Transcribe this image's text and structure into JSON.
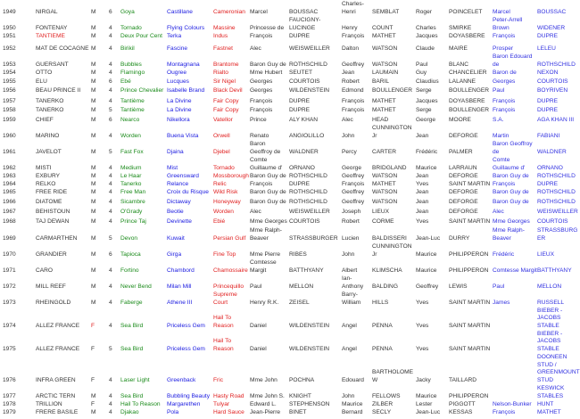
{
  "colors": {
    "sire": "#1a8a1a",
    "dam": "#1a1ae0",
    "damsire": "#e02020",
    "breeder": "#3030e0",
    "highlight": "#e02020"
  },
  "rows": [
    {
      "year": "1949",
      "horse": "NIRGAL",
      "sex": "M",
      "age": "6",
      "sire": "Goya",
      "dam": "Castillane",
      "damsire": "Cameronian",
      "owner_first": "Marcel",
      "owner_last": "BOUSSAC",
      "trainer_first": "Charles-Henri",
      "trainer_last": "SEMBLAT",
      "jockey_first": "Roger",
      "jockey_last": "POINCELET",
      "breeder_first": "Marcel",
      "breeder_last": "BOUSSAC"
    },
    {
      "year": "1950",
      "horse": "FONTENAY",
      "sex": "M",
      "age": "4",
      "sire": "Tornado",
      "dam": "Flying Colours",
      "damsire": "Massine",
      "owner_first": "Princesse de",
      "owner_last": "FAUCIGNY-LUCINGE",
      "trainer_first": "Henry",
      "trainer_last": "COUNT",
      "jockey_first": "Charles",
      "jockey_last": "SMIRKE",
      "breeder_first": "Peter-Arrell Brown",
      "breeder_last": "WIDENER"
    },
    {
      "year": "1951",
      "horse": "TANTIEME",
      "horse_red": true,
      "sex": "M",
      "age": "4",
      "sire": "Deux Pour Cent",
      "dam": "Terka",
      "damsire": "Indus",
      "owner_first": "François",
      "owner_last": "DUPRE",
      "trainer_first": "François",
      "trainer_last": "MATHET",
      "jockey_first": "Jacques",
      "jockey_last": "DOYASBERE",
      "breeder_first": "François",
      "breeder_last": "DUPRE"
    },
    {
      "year": "1952",
      "horse": "MAT DE COCAGNE",
      "sex": "M",
      "age": "4",
      "sire": "Birikil",
      "dam": "Fascine",
      "damsire": "Fastnet",
      "owner_first": "Alec",
      "owner_last": "WEISWEILLER",
      "trainer_first": "Dalton",
      "trainer_last": "WATSON",
      "jockey_first": "Claude",
      "jockey_last": "MAIRE",
      "breeder_first": "Prosper",
      "breeder_last": "LELEU"
    },
    {
      "year": "1953",
      "horse": "GUERSANT",
      "sex": "M",
      "age": "4",
      "sire": "Bubbles",
      "dam": "Montagnana",
      "damsire": "Brantome",
      "owner_first": "Baron Guy de",
      "owner_last": "ROTHSCHILD",
      "trainer_first": "Geoffrey",
      "trainer_last": "WATSON",
      "jockey_first": "Paul",
      "jockey_last": "BLANC",
      "breeder_first": "Baron Edouard de",
      "breeder_last": "ROTHSCHILD"
    },
    {
      "year": "1954",
      "horse": "OTTO",
      "sex": "M",
      "age": "4",
      "sire": "Flamingo",
      "dam": "Ougree",
      "damsire": "Rialto",
      "owner_first": "Mme Hubert",
      "owner_last": "SEUTET",
      "trainer_first": "Jean",
      "trainer_last": "LAUMAIN",
      "jockey_first": "Guy",
      "jockey_last": "CHANCELIER",
      "breeder_first": "Baron de",
      "breeder_last": "NEXON"
    },
    {
      "year": "1955",
      "horse": "ELU",
      "sex": "M",
      "age": "6",
      "sire": "Ebé",
      "dam": "Lucques",
      "damsire": "Sir Nigel",
      "owner_first": "Georges",
      "owner_last": "COURTOIS",
      "trainer_first": "Robert",
      "trainer_last": "BARIL",
      "jockey_first": "Claudius",
      "jockey_last": "LALANNE",
      "breeder_first": "Georges",
      "breeder_last": "COURTOIS"
    },
    {
      "year": "1956",
      "horse": "BEAU PRINCE II",
      "sex": "M",
      "age": "4",
      "sire": "Prince Chevalier",
      "dam": "Isabelle Brand",
      "damsire": "Black Devil",
      "owner_first": "Georges",
      "owner_last": "WILDENSTEIN",
      "trainer_first": "Edmond",
      "trainer_last": "BOULLENGER",
      "jockey_first": "Serge",
      "jockey_last": "BOULLENGER",
      "breeder_first": "Paul",
      "breeder_last": "BOYRIVEN"
    },
    {
      "year": "1957",
      "horse": "TANERKO",
      "sex": "M",
      "age": "4",
      "sire": "Tantième",
      "dam": "La Divine",
      "damsire": "Fair Copy",
      "owner_first": "François",
      "owner_last": "DUPRE",
      "trainer_first": "François",
      "trainer_last": "MATHET",
      "jockey_first": "Jacques",
      "jockey_last": "DOYASBERE",
      "breeder_first": "François",
      "breeder_last": "DUPRE"
    },
    {
      "year": "1958",
      "horse": "TANERKO",
      "sex": "M",
      "age": "5",
      "sire": "Tantième",
      "dam": "La Divine",
      "damsire": "Fair Copy",
      "owner_first": "François",
      "owner_last": "DUPRE",
      "trainer_first": "François",
      "trainer_last": "MATHET",
      "jockey_first": "Serge",
      "jockey_last": "BOULLENGER",
      "breeder_first": "François",
      "breeder_last": "DUPRE"
    },
    {
      "year": "1959",
      "horse": "CHIEF",
      "sex": "M",
      "age": "6",
      "sire": "Nearco",
      "dam": "Nikellora",
      "damsire": "Vatellor",
      "owner_first": "Prince",
      "owner_last": "ALY KHAN",
      "trainer_first": "Alec",
      "trainer_last": "HEAD",
      "jockey_first": "George",
      "jockey_last": "MOORE",
      "breeder_first": "S.A.",
      "breeder_last": "AGA KHAN III"
    },
    {
      "year": "1960",
      "horse": "MARINO",
      "sex": "M",
      "age": "4",
      "sire": "Worden",
      "dam": "Buena Vista",
      "damsire": "Orwell",
      "owner_first": "Renato",
      "owner_last": "ANGIOLILLO",
      "trainer_first": "John",
      "trainer_last": "CUNNINGTON Jr",
      "jockey_first": "Jean",
      "jockey_last": "DEFORGE",
      "breeder_first": "Martin",
      "breeder_last": "FABIANI"
    },
    {
      "year": "1961",
      "horse": "JAVELOT",
      "sex": "M",
      "age": "5",
      "sire": "Fast Fox",
      "dam": "Djaina",
      "damsire": "Djebel",
      "owner_first": "Baron Geoffroy de",
      "owner_last": "WALDNER",
      "trainer_first": "Percy",
      "trainer_last": "CARTER",
      "jockey_first": "Frédéric",
      "jockey_last": "PALMER",
      "breeder_first": "Baron Geoffroy de",
      "breeder_last": "WALDNER"
    },
    {
      "year": "1962",
      "horse": "MISTI",
      "sex": "M",
      "age": "4",
      "sire": "Medium",
      "dam": "Mist",
      "damsire": "Tornado",
      "owner_first": "Comte Guillaume d'",
      "owner_last": "ORNANO",
      "trainer_first": "George",
      "trainer_last": "BRIDGLAND",
      "jockey_first": "Maurice",
      "jockey_last": "LARRAUN",
      "breeder_first": "Comte Guillaume d'",
      "breeder_last": "ORNANO"
    },
    {
      "year": "1963",
      "horse": "EXBURY",
      "sex": "M",
      "age": "4",
      "sire": "Le Haar",
      "dam": "Greensward",
      "damsire": "Mossborough",
      "owner_first": "Baron Guy de",
      "owner_last": "ROTHSCHILD",
      "trainer_first": "Geoffrey",
      "trainer_last": "WATSON",
      "jockey_first": "Jean",
      "jockey_last": "DEFORGE",
      "breeder_first": "Baron Guy de",
      "breeder_last": "ROTHSCHILD"
    },
    {
      "year": "1964",
      "horse": "RELKO",
      "sex": "M",
      "age": "4",
      "sire": "Tanerko",
      "dam": "Relance",
      "damsire": "Relic",
      "owner_first": "François",
      "owner_last": "DUPRE",
      "trainer_first": "François",
      "trainer_last": "MATHET",
      "jockey_first": "Yves",
      "jockey_last": "SAINT MARTIN",
      "breeder_first": "François",
      "breeder_last": "DUPRE"
    },
    {
      "year": "1965",
      "horse": "FREE RIDE",
      "sex": "M",
      "age": "4",
      "sire": "Free Man",
      "dam": "Croix du Risque",
      "damsire": "Wild Risk",
      "owner_first": "Baron Guy de",
      "owner_last": "ROTHSCHILD",
      "trainer_first": "Geoffrey",
      "trainer_last": "WATSON",
      "jockey_first": "Jean",
      "jockey_last": "DEFORGE",
      "breeder_first": "Baron Guy de",
      "breeder_last": "ROTHSCHILD"
    },
    {
      "year": "1966",
      "horse": "DIATOME",
      "sex": "M",
      "age": "4",
      "sire": "Sicambre",
      "dam": "Dictaway",
      "damsire": "Honeyway",
      "owner_first": "Baron Guy de",
      "owner_last": "ROTHSCHILD",
      "trainer_first": "Geoffrey",
      "trainer_last": "WATSON",
      "jockey_first": "Jean",
      "jockey_last": "DEFORGE",
      "breeder_first": "Baron Guy de",
      "breeder_last": "ROTHSCHILD"
    },
    {
      "year": "1967",
      "horse": "BEHISTOUN",
      "sex": "M",
      "age": "4",
      "sire": "O'Grady",
      "dam": "Beotie",
      "damsire": "Worden",
      "owner_first": "Alec",
      "owner_last": "WEISWEILLER",
      "trainer_first": "Joseph",
      "trainer_last": "LIEUX",
      "jockey_first": "Jean",
      "jockey_last": "DEFORGE",
      "breeder_first": "Alec",
      "breeder_last": "WEISWEILLER"
    },
    {
      "year": "1968",
      "horse": "TAJ DEWAN",
      "sex": "M",
      "age": "4",
      "sire": "Prince Taj",
      "dam": "Devinette",
      "damsire": "Ebié",
      "owner_first": "Mme Georges",
      "owner_last": "COURTOIS",
      "trainer_first": "Robert",
      "trainer_last": "CORME",
      "jockey_first": "Yves",
      "jockey_last": "SAINT MARTIN",
      "breeder_first": "Mme Georges",
      "breeder_last": "COURTOIS"
    },
    {
      "year": "1969",
      "horse": "CARMARTHEN",
      "sex": "M",
      "age": "5",
      "sire": "Devon",
      "dam": "Kuwait",
      "damsire": "Persian Gulf",
      "owner_first": "Mme Ralph-Beaver",
      "owner_last": "STRASSBURGER",
      "trainer_first": "Lucien",
      "trainer_last": "BALDISSERI",
      "jockey_first": "Jean-Luc",
      "jockey_last": "DURRY",
      "breeder_first": "Mme Ralph-Beaver",
      "breeder_last": "STRASSBURGER"
    },
    {
      "year": "1970",
      "horse": "GRANDIER",
      "sex": "M",
      "age": "6",
      "sire": "Tapioca",
      "dam": "Girga",
      "damsire": "Fine Top",
      "owner_first": "Mme Pierre",
      "owner_last": "RIBES",
      "trainer_first": "John",
      "trainer_last": "CUNNINGTON Jr",
      "jockey_first": "Maurice",
      "jockey_last": "PHILIPPERON",
      "breeder_first": "Frédéric",
      "breeder_last": "LIEUX"
    },
    {
      "year": "1971",
      "horse": "CARO",
      "sex": "M",
      "age": "4",
      "sire": "Fortino",
      "dam": "Chambord",
      "damsire": "Chamossaire",
      "owner_first": "Comtesse Margit",
      "owner_last": "BATTHYANY",
      "trainer_first": "Albert",
      "trainer_last": "KLIMSCHA",
      "jockey_first": "Maurice",
      "jockey_last": "PHILIPPERON",
      "breeder_first": "Comtesse Margit",
      "breeder_last": "BATTHYANY"
    },
    {
      "year": "1972",
      "horse": "MILL REEF",
      "sex": "M",
      "age": "4",
      "sire": "Never Bend",
      "dam": "Milan Mill",
      "damsire": "Princequillo",
      "owner_first": "Paul",
      "owner_last": "MELLON",
      "trainer_first": "Ian-Anthony",
      "trainer_last": "BALDING",
      "jockey_first": "Geoffrey",
      "jockey_last": "LEWIS",
      "breeder_first": "Paul",
      "breeder_last": "MELLON"
    },
    {
      "year": "1973",
      "horse": "RHEINGOLD",
      "sex": "M",
      "age": "4",
      "sire": "Faberge",
      "dam": "Athene III",
      "damsire": "Supreme Court",
      "owner_first": "Henry R.K.",
      "owner_last": "ZEISEL",
      "trainer_first": "Barry-William",
      "trainer_last": "HILLS",
      "jockey_first": "Yves",
      "jockey_last": "SAINT MARTIN",
      "breeder_first": "James",
      "breeder_last": "RUSSELL"
    },
    {
      "year": "1974",
      "horse": "ALLEZ FRANCE",
      "sex": "F",
      "sex_red": true,
      "age": "4",
      "sire": "Sea Bird",
      "dam": "Priceless Gem",
      "damsire": "Hail To Reason",
      "owner_first": "Daniel",
      "owner_last": "WILDENSTEIN",
      "trainer_first": "Angel",
      "trainer_last": "PENNA",
      "jockey_first": "Yves",
      "jockey_last": "SAINT MARTIN",
      "breeder_first": "",
      "breeder_last": "BIEBER - JACOBS STABLE"
    },
    {
      "year": "1975",
      "horse": "ALLEZ FRANCE",
      "sex": "F",
      "age": "5",
      "sire": "Sea Bird",
      "dam": "Priceless Gem",
      "damsire": "Hail To Reason",
      "owner_first": "Daniel",
      "owner_last": "WILDENSTEIN",
      "trainer_first": "Angel",
      "trainer_last": "PENNA",
      "jockey_first": "Yves",
      "jockey_last": "SAINT MARTIN",
      "breeder_first": "",
      "breeder_last": "BIEBER - JACOBS STABLE"
    },
    {
      "year": "1976",
      "horse": "INFRA GREEN",
      "sex": "F",
      "age": "4",
      "sire": "Laser Light",
      "dam": "Greenback",
      "damsire": "Fric",
      "owner_first": "Mme John",
      "owner_last": "POCHNA",
      "trainer_first": "Edouard",
      "trainer_last": "BARTHOLOMEW",
      "jockey_first": "Jacky",
      "jockey_last": "TAILLARD",
      "breeder_first": "",
      "breeder_last": "DOONEEN STUD / GREENMOUNT STUD"
    },
    {
      "year": "1977",
      "horse": "ARCTIC TERN",
      "sex": "M",
      "age": "4",
      "sire": "Sea Bird",
      "dam": "Bubbling Beauty",
      "damsire": "Hasty Road",
      "owner_first": "Mme John S.",
      "owner_last": "KNIGHT",
      "trainer_first": "John",
      "trainer_last": "FELLOWS",
      "jockey_first": "Maurice",
      "jockey_last": "PHILIPPERON",
      "breeder_first": "",
      "breeder_last": "KESWICK STABLES"
    },
    {
      "year": "1978",
      "horse": "TRILLION",
      "sex": "F",
      "age": "4",
      "sire": "Hail To Reason",
      "dam": "Margarethen",
      "damsire": "Tulyar",
      "owner_first": "Edward L.",
      "owner_last": "STEPHENSON",
      "trainer_first": "Maurice",
      "trainer_last": "ZILBER",
      "jockey_first": "Lester",
      "jockey_last": "PIGGOTT",
      "breeder_first": "Nelson-Bunker",
      "breeder_last": "HUNT"
    },
    {
      "year": "1979",
      "horse": "FRERE BASILE",
      "sex": "M",
      "age": "4",
      "sire": "Djakao",
      "dam": "Pola",
      "damsire": "Hard Sauce",
      "owner_first": "Jean-Pierre",
      "owner_last": "BINET",
      "trainer_first": "Bernard",
      "trainer_last": "SECLY",
      "jockey_first": "Jean-Luc",
      "jockey_last": "KESSAS",
      "breeder_first": "François",
      "breeder_last": "MATHET"
    }
  ]
}
